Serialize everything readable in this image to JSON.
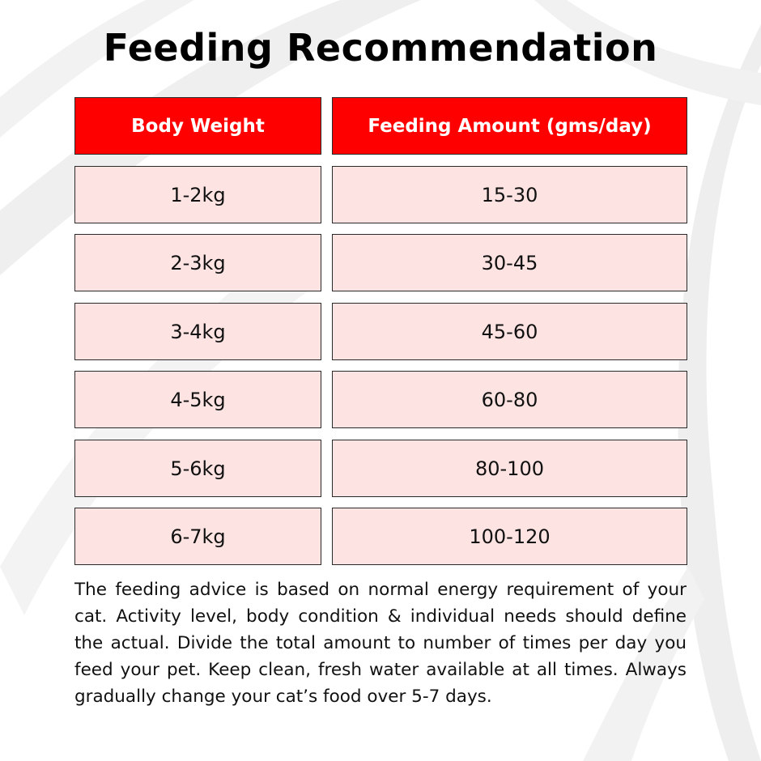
{
  "title": "Feeding Recommendation",
  "table": {
    "headers": [
      "Body Weight",
      "Feeding Amount (gms/day)"
    ],
    "rows": [
      [
        "1-2kg",
        "15-30"
      ],
      [
        "2-3kg",
        "30-45"
      ],
      [
        "3-4kg",
        "45-60"
      ],
      [
        "4-5kg",
        "60-80"
      ],
      [
        "5-6kg",
        "80-100"
      ],
      [
        "6-7kg",
        "100-120"
      ]
    ]
  },
  "note": "The feeding advice is based on normal energy requirement of your cat. Activity level, body condition & individual needs should define the actual. Divide the total amount to number of times per day you feed your pet. Keep clean, fresh water available at all times. Always gradually change your cat’s food over 5-7 days.",
  "colors": {
    "header": "#ff0000",
    "row": "#fde3e2",
    "background_swoosh": "#ececec"
  }
}
